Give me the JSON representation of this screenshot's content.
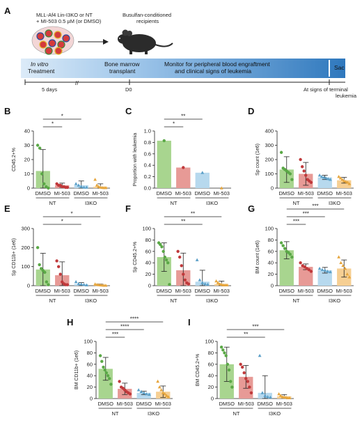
{
  "figure": {
    "panel_a": {
      "letter": "A",
      "cells_label_line1": "MLL-Af4 Lin-I3KO or NT",
      "cells_label_line2": "+ MI-503 0.5 µM (or DMSO)",
      "recipients_line1": "Busulfan-conditioned",
      "recipients_line2": "recipients",
      "stage_invitro_1": "In vitro",
      "stage_invitro_2": "Treatment",
      "stage_bmt_1": "Bone marrow",
      "stage_bmt_2": "transplant",
      "stage_monitor_1": "Monitor for peripheral blood engraftment",
      "stage_monitor_2": "and clinical signs of leukemia",
      "stage_sac": "Sac",
      "tick_days": "5 days",
      "tick_d0": "D0",
      "tick_end_1": "At signs of terminal",
      "tick_end_2": "leukemia",
      "break_mark": "//"
    },
    "group_labels": {
      "cond1": "DMSO",
      "cond2": "MI-503",
      "geno1": "NT",
      "geno2": "I3KO"
    },
    "colors": {
      "nt_dmso": "#5aa846",
      "nt_mi": "#c0393b",
      "i3_dmso": "#5a9fc8",
      "i3_mi": "#e6a53c",
      "nt_dmso_fill": "#a8d58f",
      "nt_mi_fill": "#e79a96",
      "i3_dmso_fill": "#b7d9ee",
      "i3_mi_fill": "#f6cf93",
      "timeline_dark": "#3a7fc1"
    }
  },
  "chart_data": [
    {
      "panel": "B",
      "type": "bar",
      "ylabel": "CD45.2+%",
      "ylim": [
        0,
        40
      ],
      "yticks": [
        "0",
        "10",
        "20",
        "30",
        "40"
      ],
      "groups": [
        "NT DMSO",
        "NT MI-503",
        "I3KO DMSO",
        "I3KO MI-503"
      ],
      "means": [
        12,
        2,
        2,
        1
      ],
      "err": [
        15,
        1.5,
        3,
        2
      ],
      "points": [
        [
          30,
          28,
          10,
          3,
          1,
          0
        ],
        [
          3,
          2,
          2,
          1,
          1,
          0.5,
          0.5
        ],
        [
          3,
          2,
          1,
          0.5,
          0.5
        ],
        [
          6,
          2,
          1,
          0.5,
          0.3,
          0.2,
          0.2
        ]
      ],
      "sig": [
        {
          "from": 0,
          "to": 1,
          "label": "*"
        },
        {
          "from": 0,
          "to": 2,
          "label": "*"
        }
      ]
    },
    {
      "panel": "C",
      "type": "bar",
      "ylabel": "Proportion with leukemia",
      "ylim": [
        0,
        1
      ],
      "yticks": [
        "0.0",
        "0.2",
        "0.4",
        "0.6",
        "0.8",
        "1.0"
      ],
      "groups": [
        "NT DMSO",
        "NT MI-503",
        "I3KO DMSO",
        "I3KO MI-503"
      ],
      "means": [
        0.83,
        0.36,
        0.27,
        0.0
      ],
      "err": [
        0,
        0,
        0,
        0
      ],
      "points": [
        [
          0.83
        ],
        [
          0.36
        ],
        [
          0.27
        ],
        [
          0
        ]
      ],
      "sig": [
        {
          "from": 0,
          "to": 1,
          "label": "*"
        },
        {
          "from": 0,
          "to": 2,
          "label": "**"
        }
      ]
    },
    {
      "panel": "D",
      "type": "bar",
      "ylabel": "Sp count (1e6)",
      "ylim": [
        0,
        400
      ],
      "yticks": [
        "0",
        "100",
        "200",
        "300",
        "400"
      ],
      "groups": [
        "NT DMSO",
        "NT MI-503",
        "I3KO DMSO",
        "I3KO MI-503"
      ],
      "means": [
        130,
        100,
        75,
        55
      ],
      "err": [
        90,
        80,
        15,
        20
      ],
      "points": [
        [
          250,
          140,
          130,
          120,
          110,
          100,
          60
        ],
        [
          200,
          150,
          120,
          90,
          60,
          50,
          40
        ],
        [
          90,
          80,
          75,
          70,
          65,
          60
        ],
        [
          80,
          70,
          60,
          50,
          45,
          40,
          30
        ]
      ],
      "sig": []
    },
    {
      "panel": "E",
      "type": "bar",
      "ylabel": "Sp CD11b+ (1e6)",
      "ylim": [
        0,
        300
      ],
      "yticks": [
        "0",
        "100",
        "200",
        "300"
      ],
      "groups": [
        "NT DMSO",
        "NT MI-503",
        "I3KO DMSO",
        "I3KO MI-503"
      ],
      "means": [
        85,
        55,
        8,
        4
      ],
      "err": [
        85,
        70,
        8,
        4
      ],
      "points": [
        [
          200,
          110,
          90,
          80,
          70,
          20,
          5
        ],
        [
          130,
          100,
          60,
          20,
          10,
          5,
          5
        ],
        [
          20,
          10,
          8,
          5,
          3
        ],
        [
          8,
          5,
          4,
          3,
          2,
          1,
          1
        ]
      ],
      "sig": [
        {
          "from": 0,
          "to": 2,
          "label": "*"
        },
        {
          "from": 0,
          "to": 3,
          "label": "*"
        }
      ]
    },
    {
      "panel": "F",
      "type": "bar",
      "ylabel": "Sp CD45.2+%",
      "ylim": [
        0,
        100
      ],
      "yticks": [
        "0",
        "20",
        "40",
        "60",
        "80",
        "100"
      ],
      "groups": [
        "NT DMSO",
        "NT MI-503",
        "I3KO DMSO",
        "I3KO MI-503"
      ],
      "means": [
        50,
        27,
        7,
        3
      ],
      "err": [
        25,
        30,
        20,
        5
      ],
      "points": [
        [
          75,
          72,
          68,
          60,
          50,
          45,
          40,
          2
        ],
        [
          60,
          50,
          35,
          20,
          10,
          5,
          3
        ],
        [
          45,
          10,
          5,
          3,
          2
        ],
        [
          8,
          5,
          3,
          2,
          1,
          1,
          1
        ]
      ],
      "sig": [
        {
          "from": 0,
          "to": 2,
          "label": "**"
        },
        {
          "from": 0,
          "to": 3,
          "label": "**"
        }
      ]
    },
    {
      "panel": "G",
      "type": "bar",
      "ylabel": "BM count (1e6)",
      "ylim": [
        0,
        100
      ],
      "yticks": [
        "0",
        "20",
        "40",
        "60",
        "80",
        "100"
      ],
      "groups": [
        "NT DMSO",
        "NT MI-503",
        "I3KO DMSO",
        "I3KO MI-503"
      ],
      "means": [
        62,
        33,
        27,
        30
      ],
      "err": [
        15,
        5,
        5,
        15
      ],
      "points": [
        [
          75,
          70,
          65,
          60,
          58,
          55,
          50
        ],
        [
          40,
          35,
          33,
          30,
          28,
          25
        ],
        [
          30,
          28,
          27,
          25,
          24
        ],
        [
          50,
          40,
          35,
          30,
          20,
          15
        ]
      ],
      "sig": [
        {
          "from": 0,
          "to": 1,
          "label": "***"
        },
        {
          "from": 0,
          "to": 2,
          "label": "***"
        },
        {
          "from": 0,
          "to": 3,
          "label": "***"
        }
      ]
    },
    {
      "panel": "H",
      "type": "bar",
      "ylabel": "BM CD11b+ (1e6)",
      "ylim": [
        0,
        100
      ],
      "yticks": [
        "0",
        "20",
        "40",
        "60",
        "80",
        "100"
      ],
      "groups": [
        "NT DMSO",
        "NT MI-503",
        "I3KO DMSO",
        "I3KO MI-503"
      ],
      "means": [
        52,
        17,
        10,
        12
      ],
      "err": [
        20,
        10,
        3,
        10
      ],
      "points": [
        [
          75,
          65,
          55,
          50,
          45,
          40,
          35,
          25
        ],
        [
          30,
          20,
          18,
          15,
          12,
          10,
          8
        ],
        [
          15,
          12,
          10,
          8,
          7
        ],
        [
          30,
          20,
          15,
          10,
          8,
          5,
          3
        ]
      ],
      "sig": [
        {
          "from": 0,
          "to": 1,
          "label": "***"
        },
        {
          "from": 0,
          "to": 2,
          "label": "****"
        },
        {
          "from": 0,
          "to": 3,
          "label": "****"
        }
      ]
    },
    {
      "panel": "I",
      "type": "bar",
      "ylabel": "BM CD45.2+%",
      "ylim": [
        0,
        100
      ],
      "yticks": [
        "0",
        "20",
        "40",
        "60",
        "80",
        "100"
      ],
      "groups": [
        "NT DMSO",
        "NT MI-503",
        "I3KO DMSO",
        "I3KO MI-503"
      ],
      "means": [
        60,
        38,
        10,
        4
      ],
      "err": [
        30,
        20,
        30,
        3
      ],
      "points": [
        [
          90,
          85,
          80,
          75,
          60,
          50,
          30,
          20
        ],
        [
          60,
          55,
          45,
          35,
          30,
          20,
          10
        ],
        [
          75,
          10,
          5,
          3,
          2
        ],
        [
          8,
          5,
          3,
          2,
          2,
          1,
          1
        ]
      ],
      "sig": [
        {
          "from": 0,
          "to": 2,
          "label": "**"
        },
        {
          "from": 0,
          "to": 3,
          "label": "***"
        }
      ]
    }
  ]
}
